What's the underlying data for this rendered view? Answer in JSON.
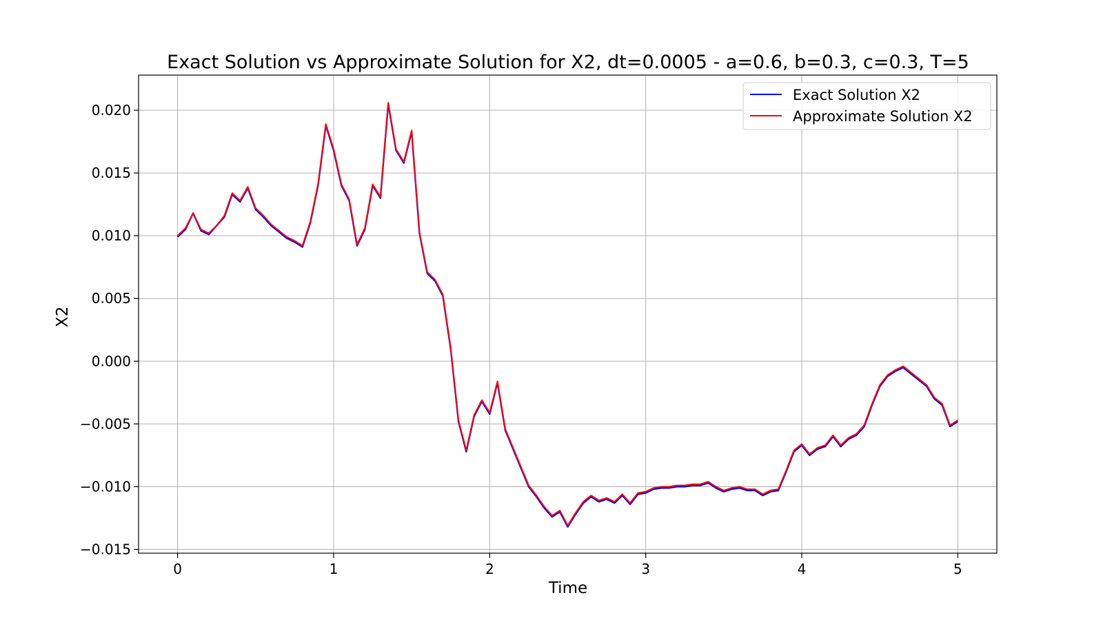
{
  "chart_data": {
    "type": "line",
    "title": "Exact Solution vs Approximate Solution for X2, dt=0.0005 - a=0.6, b=0.3, c=0.3, T=5",
    "xlabel": "Time",
    "ylabel": "X2",
    "xlim": [
      -0.25,
      5.25
    ],
    "ylim": [
      -0.0153,
      0.0228
    ],
    "grid": true,
    "legend_position": "top-right",
    "x_ticks": [
      0,
      1,
      2,
      3,
      4,
      5
    ],
    "x_tick_labels": [
      "0",
      "1",
      "2",
      "3",
      "4",
      "5"
    ],
    "y_ticks": [
      -0.015,
      -0.01,
      -0.005,
      0.0,
      0.005,
      0.01,
      0.015,
      0.02
    ],
    "y_tick_labels": [
      "−0.015",
      "−0.010",
      "−0.005",
      "0.000",
      "0.005",
      "0.010",
      "0.015",
      "0.020"
    ],
    "x": [
      0,
      0.05,
      0.1,
      0.15,
      0.2,
      0.25,
      0.3,
      0.35,
      0.4,
      0.45,
      0.5,
      0.55,
      0.6,
      0.65,
      0.7,
      0.75,
      0.8,
      0.85,
      0.9,
      0.95,
      1.0,
      1.05,
      1.1,
      1.15,
      1.2,
      1.25,
      1.3,
      1.35,
      1.4,
      1.45,
      1.5,
      1.55,
      1.6,
      1.65,
      1.7,
      1.75,
      1.8,
      1.85,
      1.9,
      1.95,
      2.0,
      2.05,
      2.1,
      2.15,
      2.2,
      2.25,
      2.3,
      2.35,
      2.4,
      2.45,
      2.5,
      2.55,
      2.6,
      2.65,
      2.7,
      2.75,
      2.8,
      2.85,
      2.9,
      2.95,
      3.0,
      3.05,
      3.1,
      3.15,
      3.2,
      3.25,
      3.3,
      3.35,
      3.4,
      3.45,
      3.5,
      3.55,
      3.6,
      3.65,
      3.7,
      3.75,
      3.8,
      3.85,
      3.9,
      3.95,
      4.0,
      4.05,
      4.1,
      4.15,
      4.2,
      4.25,
      4.3,
      4.35,
      4.4,
      4.45,
      4.5,
      4.55,
      4.6,
      4.65,
      4.7,
      4.75,
      4.8,
      4.85,
      4.9,
      4.95,
      5.0
    ],
    "series": [
      {
        "name": "Exact Solution X2",
        "color": "#0000ff",
        "values": [
          0.0099,
          0.0105,
          0.0118,
          0.0104,
          0.0101,
          0.0108,
          0.0115,
          0.0133,
          0.0127,
          0.0138,
          0.0121,
          0.0115,
          0.0108,
          0.0103,
          0.0098,
          0.0095,
          0.0091,
          0.011,
          0.014,
          0.0188,
          0.0168,
          0.014,
          0.0128,
          0.0092,
          0.0105,
          0.014,
          0.013,
          0.0205,
          0.0168,
          0.0158,
          0.0183,
          0.0102,
          0.007,
          0.0064,
          0.0052,
          0.001,
          -0.0048,
          -0.0072,
          -0.0044,
          -0.0032,
          -0.0042,
          -0.0017,
          -0.0055,
          -0.007,
          -0.0085,
          -0.01,
          -0.0108,
          -0.0117,
          -0.0124,
          -0.012,
          -0.0132,
          -0.0122,
          -0.0113,
          -0.0108,
          -0.0112,
          -0.011,
          -0.0113,
          -0.0107,
          -0.0114,
          -0.0106,
          -0.0105,
          -0.0102,
          -0.0101,
          -0.0101,
          -0.01,
          -0.01,
          -0.0099,
          -0.0099,
          -0.0097,
          -0.0101,
          -0.0104,
          -0.0102,
          -0.0101,
          -0.0103,
          -0.0103,
          -0.0107,
          -0.0104,
          -0.0103,
          -0.0088,
          -0.0072,
          -0.0067,
          -0.0075,
          -0.007,
          -0.0068,
          -0.006,
          -0.0068,
          -0.0062,
          -0.0059,
          -0.0052,
          -0.0035,
          -0.002,
          -0.0012,
          -0.0008,
          -0.0005,
          -0.001,
          -0.0015,
          -0.002,
          -0.003,
          -0.0035,
          -0.0052,
          -0.0048
        ]
      },
      {
        "name": "Approximate Solution X2",
        "color": "#ff0000",
        "values": [
          0.01,
          0.0106,
          0.0118,
          0.0105,
          0.0102,
          0.0108,
          0.0116,
          0.0134,
          0.0128,
          0.0139,
          0.0122,
          0.0116,
          0.0109,
          0.0104,
          0.0099,
          0.0096,
          0.0092,
          0.0111,
          0.0141,
          0.0189,
          0.0169,
          0.0141,
          0.0129,
          0.0093,
          0.0106,
          0.0141,
          0.0131,
          0.0206,
          0.0169,
          0.0159,
          0.0184,
          0.0103,
          0.0071,
          0.0065,
          0.0053,
          0.0011,
          -0.0047,
          -0.0071,
          -0.0043,
          -0.0031,
          -0.0041,
          -0.0016,
          -0.0054,
          -0.0069,
          -0.0084,
          -0.0099,
          -0.0107,
          -0.0116,
          -0.0123,
          -0.0119,
          -0.0131,
          -0.0121,
          -0.0112,
          -0.0107,
          -0.0111,
          -0.0109,
          -0.0112,
          -0.0106,
          -0.0113,
          -0.0105,
          -0.0104,
          -0.0101,
          -0.01,
          -0.01,
          -0.0099,
          -0.0099,
          -0.0098,
          -0.0098,
          -0.0096,
          -0.01,
          -0.0103,
          -0.0101,
          -0.01,
          -0.0102,
          -0.0102,
          -0.0106,
          -0.0103,
          -0.0102,
          -0.0087,
          -0.0071,
          -0.0066,
          -0.0074,
          -0.0069,
          -0.0067,
          -0.0059,
          -0.0067,
          -0.0061,
          -0.0058,
          -0.0051,
          -0.0034,
          -0.0019,
          -0.0011,
          -0.0007,
          -0.0004,
          -0.0009,
          -0.0014,
          -0.0019,
          -0.0029,
          -0.0034,
          -0.0051,
          -0.0047
        ]
      }
    ]
  }
}
